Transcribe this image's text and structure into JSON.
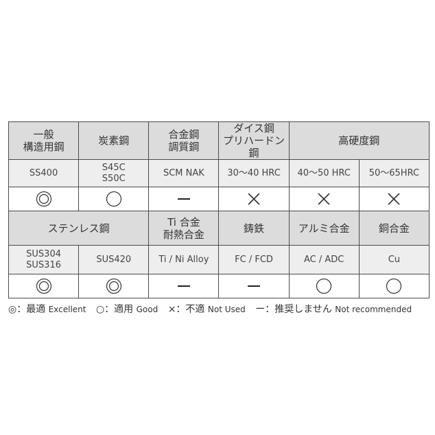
{
  "rows": [
    {
      "type": "header",
      "cells": [
        {
          "text": "一般\n構造用鋼"
        },
        {
          "text": "炭素鋼"
        },
        {
          "text": "合金鋼\n調質鋼"
        },
        {
          "text": "ダイス鋼\nプリハードン鋼"
        },
        {
          "text": "高硬度鋼",
          "colspan": 2
        }
      ]
    },
    {
      "type": "material",
      "cells": [
        {
          "text": "SS400"
        },
        {
          "text": "S45C\nS50C"
        },
        {
          "text": "SCM NAK"
        },
        {
          "text": "30～40 HRC"
        },
        {
          "text": "40～50 HRC"
        },
        {
          "text": "50～65HRC"
        }
      ]
    },
    {
      "type": "symbol",
      "cells": [
        {
          "symbol": "double-circle"
        },
        {
          "symbol": "circle"
        },
        {
          "symbol": "dash"
        },
        {
          "symbol": "cross"
        },
        {
          "symbol": "cross"
        },
        {
          "symbol": "cross"
        }
      ]
    },
    {
      "type": "header",
      "cells": [
        {
          "text": "ステンレス鋼",
          "colspan": 2
        },
        {
          "text": "Ti 合金\n耐熱合金"
        },
        {
          "text": "鋳鉄"
        },
        {
          "text": "アルミ合金"
        },
        {
          "text": "銅合金"
        }
      ]
    },
    {
      "type": "material",
      "cells": [
        {
          "text": "SUS304\nSUS316"
        },
        {
          "text": "SUS420"
        },
        {
          "text": "Ti / Ni Alloy"
        },
        {
          "text": "FC / FCD"
        },
        {
          "text": "AC / ADC"
        },
        {
          "text": "Cu"
        }
      ]
    },
    {
      "type": "symbol",
      "cells": [
        {
          "symbol": "double-circle"
        },
        {
          "symbol": "double-circle"
        },
        {
          "symbol": "dash"
        },
        {
          "symbol": "dash"
        },
        {
          "symbol": "circle"
        },
        {
          "symbol": "circle"
        }
      ]
    }
  ],
  "legend": [
    {
      "mark": "◎",
      "jp": "：最適",
      "en": "Excellent"
    },
    {
      "mark": "○",
      "jp": "：適用",
      "en": "Good"
    },
    {
      "mark": "×",
      "jp": "：不適",
      "en": "Not Used"
    },
    {
      "mark": "ー",
      "jp": "：推奨しません",
      "en": "Not recommended"
    }
  ],
  "colors": {
    "header_bg": "#dcdcdc",
    "material_bg": "#eeeeee",
    "border": "#4a4a4a"
  }
}
